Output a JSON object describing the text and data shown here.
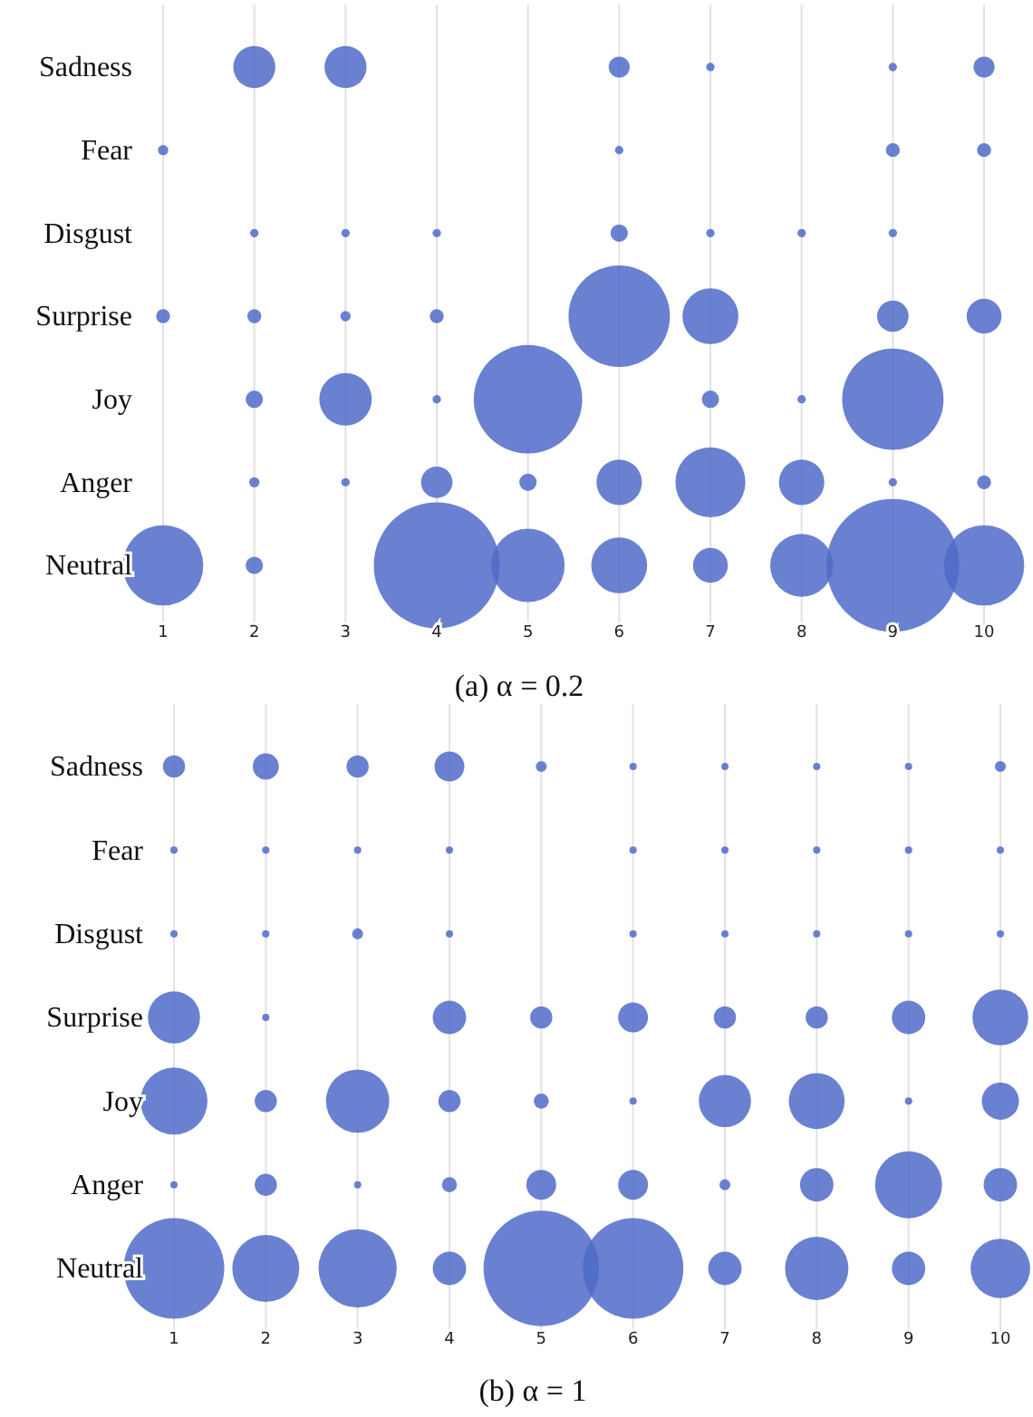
{
  "chart_data": [
    {
      "type": "bubble",
      "orientation": "horizontal",
      "title": "(a) α = 0.2",
      "categories": [
        "Sadness",
        "Fear",
        "Disgust",
        "Surprise",
        "Joy",
        "Anger",
        "Neutral"
      ],
      "xlim": [
        1,
        10
      ],
      "xticks": [
        1,
        2,
        3,
        4,
        5,
        6,
        7,
        8,
        9,
        10
      ],
      "grid": "x",
      "series": [
        {
          "color": "#4f6bc8",
          "values": [
            null,
            1,
            null,
            1,
            null,
            null,
            1
          ],
          "sizes": [
            null,
            0.006,
            null,
            0.011,
            null,
            null,
            0.366
          ]
        },
        {
          "color": "#4f6bc8",
          "values": [
            2,
            null,
            2,
            2,
            2,
            2,
            2
          ],
          "sizes": [
            0.1,
            null,
            0.004,
            0.011,
            0.017,
            0.006,
            0.017
          ]
        },
        {
          "color": "#4f6bc8",
          "values": [
            3,
            null,
            3,
            3,
            3,
            3,
            null
          ],
          "sizes": [
            0.1,
            null,
            0.004,
            0.006,
            0.156,
            0.004,
            null
          ]
        },
        {
          "color": "#4f6bc8",
          "values": [
            null,
            null,
            4,
            4,
            4,
            4,
            4
          ],
          "sizes": [
            null,
            null,
            0.004,
            0.011,
            0.004,
            0.056,
            0.898
          ]
        },
        {
          "color": "#4f6bc8",
          "values": [
            null,
            null,
            null,
            null,
            5,
            5,
            5
          ],
          "sizes": [
            null,
            null,
            null,
            null,
            0.666,
            0.017,
            0.305
          ]
        },
        {
          "color": "#4f6bc8",
          "values": [
            6,
            6,
            6,
            6,
            null,
            6,
            6
          ],
          "sizes": [
            0.025,
            0.004,
            0.017,
            0.582,
            null,
            0.117,
            0.177
          ]
        },
        {
          "color": "#4f6bc8",
          "values": [
            7,
            null,
            7,
            7,
            7,
            7,
            7
          ],
          "sizes": [
            0.004,
            null,
            0.004,
            0.177,
            0.017,
            0.277,
            0.069
          ]
        },
        {
          "color": "#4f6bc8",
          "values": [
            null,
            null,
            8,
            null,
            8,
            8,
            8
          ],
          "sizes": [
            null,
            null,
            0.004,
            null,
            0.004,
            0.117,
            0.224
          ]
        },
        {
          "color": "#4f6bc8",
          "values": [
            9,
            9,
            9,
            9,
            9,
            9,
            9
          ],
          "sizes": [
            0.004,
            0.011,
            0.004,
            0.056,
            0.582,
            0.004,
            1
          ]
        },
        {
          "color": "#4f6bc8",
          "values": [
            10,
            10,
            null,
            10,
            null,
            10,
            10
          ],
          "sizes": [
            0.025,
            0.011,
            null,
            0.069,
            null,
            0.011,
            0.366
          ]
        }
      ]
    },
    {
      "type": "bubble",
      "orientation": "horizontal",
      "title": "(b) α = 1",
      "categories": [
        "Sadness",
        "Fear",
        "Disgust",
        "Surprise",
        "Joy",
        "Anger",
        "Neutral"
      ],
      "xlim": [
        1,
        10
      ],
      "xticks": [
        1,
        2,
        3,
        4,
        5,
        6,
        7,
        8,
        9,
        10
      ],
      "grid": "x",
      "series": [
        {
          "color": "#4f6bc8",
          "values": [
            1,
            1,
            1,
            1,
            1,
            1,
            1
          ],
          "sizes": [
            0.037,
            0.004,
            0.004,
            0.204,
            0.337,
            0.004,
            0.759
          ]
        },
        {
          "color": "#4f6bc8",
          "values": [
            2,
            2,
            2,
            2,
            2,
            2,
            2
          ],
          "sizes": [
            0.051,
            0.004,
            0.004,
            0.004,
            0.037,
            0.037,
            0.337
          ]
        },
        {
          "color": "#4f6bc8",
          "values": [
            3,
            3,
            3,
            null,
            3,
            3,
            3
          ],
          "sizes": [
            0.037,
            0.004,
            0.009,
            null,
            0.301,
            0.004,
            0.459
          ]
        },
        {
          "color": "#4f6bc8",
          "values": [
            4,
            4,
            4,
            4,
            4,
            4,
            4
          ],
          "sizes": [
            0.067,
            0.004,
            0.004,
            0.084,
            0.037,
            0.017,
            0.084
          ]
        },
        {
          "color": "#4f6bc8",
          "values": [
            5,
            null,
            null,
            5,
            5,
            5,
            5
          ],
          "sizes": [
            0.009,
            null,
            null,
            0.037,
            0.017,
            0.067,
            1
          ]
        },
        {
          "color": "#4f6bc8",
          "values": [
            6,
            6,
            6,
            6,
            6,
            6,
            6
          ],
          "sizes": [
            0.004,
            0.004,
            0.004,
            0.067,
            0.004,
            0.067,
            0.759
          ]
        },
        {
          "color": "#4f6bc8",
          "values": [
            7,
            7,
            7,
            7,
            7,
            7,
            7
          ],
          "sizes": [
            0.004,
            0.004,
            0.004,
            0.037,
            0.204,
            0.009,
            0.084
          ]
        },
        {
          "color": "#4f6bc8",
          "values": [
            8,
            8,
            8,
            8,
            8,
            8,
            8
          ],
          "sizes": [
            0.004,
            0.004,
            0.004,
            0.037,
            0.234,
            0.084,
            0.301
          ]
        },
        {
          "color": "#4f6bc8",
          "values": [
            9,
            9,
            9,
            9,
            9,
            9,
            9
          ],
          "sizes": [
            0.004,
            0.004,
            0.004,
            0.084,
            0.004,
            0.337,
            0.084
          ]
        },
        {
          "color": "#4f6bc8",
          "values": [
            10,
            10,
            10,
            10,
            10,
            10,
            10
          ],
          "sizes": [
            0.009,
            0.004,
            0.004,
            0.234,
            0.104,
            0.084,
            0.266
          ]
        }
      ]
    }
  ]
}
